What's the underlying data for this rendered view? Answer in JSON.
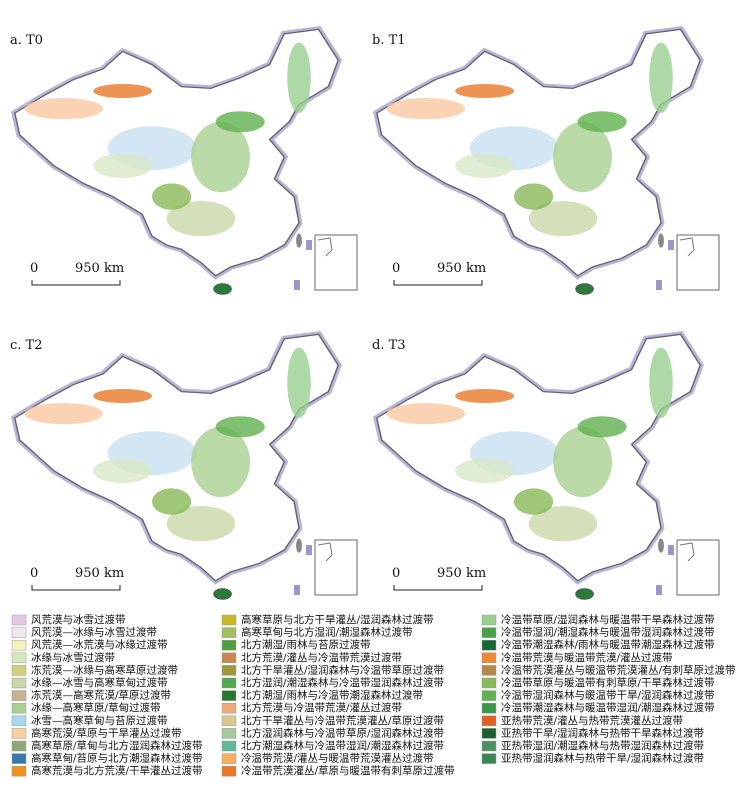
{
  "panels": [
    {
      "label": "a. T0",
      "scale_start": "0",
      "scale_end": "950 km"
    },
    {
      "label": "b. T1",
      "scale_start": "0",
      "scale_end": "950 km"
    },
    {
      "label": "c. T2",
      "scale_start": "0",
      "scale_end": "950 km"
    },
    {
      "label": "d. T3",
      "scale_start": "0",
      "scale_end": "950 km"
    }
  ],
  "legend": [
    [
      {
        "label": "风荒漠与冰雪过渡带",
        "color": "#e4c8e4"
      },
      {
        "label": "风荒漠—冰缘与冰雪过渡带",
        "color": "#f0e8f0"
      },
      {
        "label": "风荒漠—冰荒漠与冰缘过渡带",
        "color": "#f4f0c0"
      },
      {
        "label": "冰缘与冰雪过渡带",
        "color": "#d4e8c0"
      },
      {
        "label": "冻荒漠—冰缘与高寒草原过渡带",
        "color": "#d0d080"
      },
      {
        "label": "冰缘—冰雪与高寒草甸过渡带",
        "color": "#c8d8a8"
      },
      {
        "label": "冻荒漠—高寒荒漠/草原过渡带",
        "color": "#c8b090"
      },
      {
        "label": "冰缘—高寒草原/草甸过渡带",
        "color": "#a8d090"
      },
      {
        "label": "冰雪—高寒草甸与苔原过渡带",
        "color": "#a8d8f0"
      },
      {
        "label": "高寒荒漠/草原与干旱灌丛过渡带",
        "color": "#f8d0a0"
      },
      {
        "label": "高寒草原/草甸与北方湿润森林过渡带",
        "color": "#90a878"
      },
      {
        "label": "高寒草甸/苔原与北方潮湿森林过渡带",
        "color": "#3878a8"
      },
      {
        "label": "高寒荒漠与北方荒漠/干旱灌丛过渡带",
        "color": "#f09020"
      }
    ],
    [
      {
        "label": "高寒草原与北方干旱灌丛/湿润森林过渡带",
        "color": "#c8b828"
      },
      {
        "label": "高寒草甸与北方湿润/潮湿森林过渡带",
        "color": "#a0c060"
      },
      {
        "label": "北方潮湿/雨林与苔原过渡带",
        "color": "#50a040"
      },
      {
        "label": "北方荒漠/灌丛与冷温带荒漠过渡带",
        "color": "#c88850"
      },
      {
        "label": "北方干旱灌丛/湿润森林与冷温带草原过渡带",
        "color": "#a09838"
      },
      {
        "label": "北方湿润/潮湿森林与冷温带湿润森林过渡带",
        "color": "#50a850"
      },
      {
        "label": "北方潮湿/雨林与冷温带潮湿森林过渡带",
        "color": "#287830"
      },
      {
        "label": "北方荒漠与冷温带荒漠/灌丛过渡带",
        "color": "#f0a878"
      },
      {
        "label": "北方干旱灌丛与冷温带荒漠灌丛/草原过渡带",
        "color": "#d8c890"
      },
      {
        "label": "北方湿润森林与冷温带草原/湿润森林过渡带",
        "color": "#a8c8a0"
      },
      {
        "label": "北方潮湿森林与冷温带湿润/潮湿森林过渡带",
        "color": "#60b898"
      },
      {
        "label": "冷温带荒漠/灌丛与暖温带荒漠灌丛过渡带",
        "color": "#f8b060"
      },
      {
        "label": "冷温带荒漠灌丛/草原与暖温带有刺草原过渡带",
        "color": "#e87828"
      }
    ],
    [
      {
        "label": "冷温带草原/湿润森林与暖温带干旱森林过渡带",
        "color": "#98d090"
      },
      {
        "label": "冷温带湿润/潮湿森林与暖温带湿润森林过渡带",
        "color": "#48a048"
      },
      {
        "label": "冷温带潮湿森林/雨林与暖温带潮湿森林过渡带",
        "color": "#186838"
      },
      {
        "label": "冷温带荒漠与暖温带荒漠/灌丛过渡带",
        "color": "#f08830"
      },
      {
        "label": "冷温带荒漠灌丛与暖温带荒漠灌丛/有刺草原过渡带",
        "color": "#b88848"
      },
      {
        "label": "冷温带草原与暖温带有刺草原/干旱森林过渡带",
        "color": "#88b858"
      },
      {
        "label": "冷温带湿润森林与暖温带干旱/湿润森林过渡带",
        "color": "#60b050"
      },
      {
        "label": "冷温带潮湿森林与暖温带湿润/潮湿森林过渡带",
        "color": "#389848"
      },
      {
        "label": "亚热带荒漠/灌丛与热带荒漠灌丛过渡带",
        "color": "#e06020"
      },
      {
        "label": "亚热带干旱/湿润森林与热带干旱森林过渡带",
        "color": "#1c6030"
      },
      {
        "label": "亚热带湿润/潮湿森林与热带湿润森林过渡带",
        "color": "#4c9060"
      },
      {
        "label": "亚热带湿润森林与热带干旱/湿润森林过渡带",
        "color": "#388850"
      }
    ]
  ]
}
